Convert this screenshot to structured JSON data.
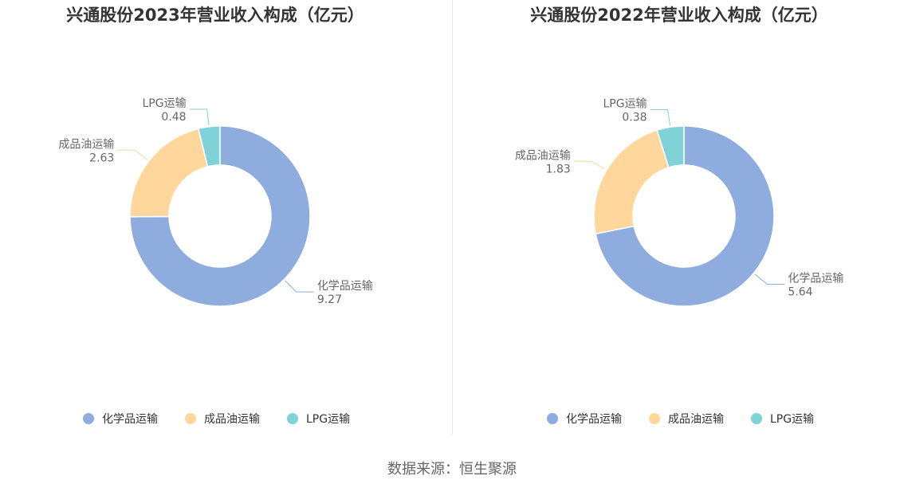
{
  "chart_data": [
    {
      "type": "pie",
      "title": "兴通股份2023年营业收入构成（亿元）",
      "categories": [
        "化学品运输",
        "成品油运输",
        "LPG运输"
      ],
      "values": [
        9.27,
        2.63,
        0.48
      ],
      "value_labels": [
        "9.27",
        "2.63",
        "0.48"
      ],
      "colors": [
        "#8eadde",
        "#ffd79c",
        "#7fd3d8"
      ],
      "donut": true,
      "legend_position": "bottom"
    },
    {
      "type": "pie",
      "title": "兴通股份2022年营业收入构成（亿元）",
      "categories": [
        "化学品运输",
        "成品油运输",
        "LPG运输"
      ],
      "values": [
        5.64,
        1.83,
        0.38
      ],
      "value_labels": [
        "5.64",
        "1.83",
        "0.38"
      ],
      "colors": [
        "#8eadde",
        "#ffd79c",
        "#7fd3d8"
      ],
      "donut": true,
      "legend_position": "bottom"
    }
  ],
  "footer": {
    "source": "数据来源：恒生聚源"
  }
}
